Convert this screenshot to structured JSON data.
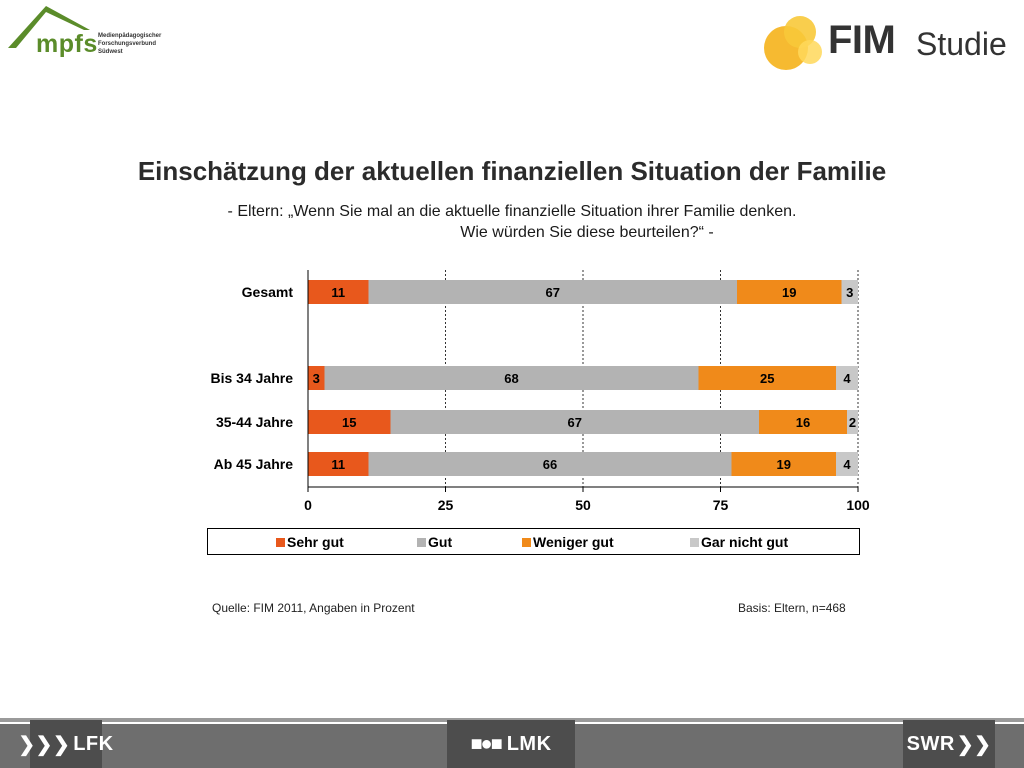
{
  "logos": {
    "mpfs_word": "mpfs",
    "mpfs_sub": [
      "Medienpädagogischer",
      "Forschungsverbund",
      "Südwest"
    ],
    "fim_word": "FIM",
    "fim_studie": "Studie"
  },
  "title": "Einschätzung der aktuellen finanziellen Situation der Familie",
  "subtitle_line1": "- Eltern: „Wenn Sie mal an die aktuelle finanzielle Situation ihrer Familie denken.",
  "subtitle_line2": "Wie würden Sie diese beurteilen?“ -",
  "colors": {
    "sehr_gut": "#e8581c",
    "gut": "#b3b3b3",
    "weniger_gut": "#f08a1a",
    "gar_nicht_gut": "#c8c8c8",
    "title": "#2b2b2b"
  },
  "chart_data": {
    "type": "bar",
    "orientation": "horizontal",
    "stacked": true,
    "categories": [
      "Gesamt",
      "Bis 34 Jahre",
      "35-44 Jahre",
      "Ab 45 Jahre"
    ],
    "series": [
      {
        "name": "Sehr gut",
        "values": [
          11,
          3,
          15,
          11
        ]
      },
      {
        "name": "Gut",
        "values": [
          67,
          68,
          67,
          66
        ]
      },
      {
        "name": "Weniger gut",
        "values": [
          19,
          25,
          16,
          19
        ]
      },
      {
        "name": "Gar nicht gut",
        "values": [
          3,
          4,
          2,
          4
        ]
      }
    ],
    "xlim": [
      0,
      100
    ],
    "xticks": [
      0,
      25,
      50,
      75,
      100
    ],
    "grid": "vertical dashed",
    "legend_position": "bottom"
  },
  "footer": {
    "source": "Quelle: FIM 2011,  Angaben in Prozent",
    "basis": "Basis: Eltern, n=468"
  },
  "bottom_logos": {
    "lfk": "LFK",
    "lmk": "LMK",
    "swr": "SWR"
  }
}
